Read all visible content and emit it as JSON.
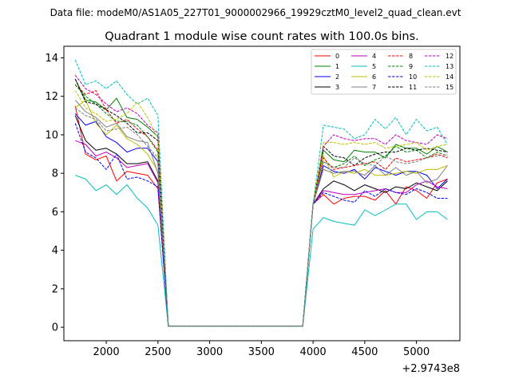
{
  "chart_data": {
    "type": "line",
    "suptitle": "Data file: modeM0/AS1A05_227T01_9000002966_19929cztM0_level2_quad_clean.evt",
    "title": "Quadrant 1 module wise count rates with 100.0s bins.",
    "xlabel": "",
    "ylabel": "",
    "x_offset_label": "+2.9743e8",
    "xlim": [
      1590,
      5420
    ],
    "ylim": [
      -0.7,
      14.6
    ],
    "xticks": [
      2000,
      2500,
      3000,
      3500,
      4000,
      4500,
      5000
    ],
    "yticks": [
      0,
      2,
      4,
      6,
      8,
      10,
      12,
      14
    ],
    "grid": false,
    "legend_position": "top-right",
    "x": [
      1700,
      1800,
      1900,
      2000,
      2100,
      2200,
      2300,
      2400,
      2500,
      2600,
      2700,
      2800,
      2900,
      3000,
      3100,
      3200,
      3300,
      3400,
      3500,
      3600,
      3700,
      3800,
      3900,
      4000,
      4100,
      4200,
      4300,
      4400,
      4500,
      4600,
      4700,
      4800,
      4900,
      5000,
      5100,
      5200,
      5300
    ],
    "series": [
      {
        "name": "0",
        "color": "#ff0000",
        "dash": "solid",
        "values": [
          11.5,
          9.0,
          8.7,
          8.9,
          7.6,
          8.1,
          8.0,
          7.9,
          7.2,
          0.05,
          0.05,
          0.05,
          0.05,
          0.05,
          0.05,
          0.05,
          0.05,
          0.05,
          0.05,
          0.05,
          0.05,
          0.05,
          0.05,
          6.4,
          6.9,
          6.4,
          6.7,
          6.8,
          6.8,
          6.6,
          7.1,
          6.4,
          7.3,
          7.1,
          6.7,
          7.5,
          7.7
        ]
      },
      {
        "name": "1",
        "color": "#008000",
        "dash": "solid",
        "values": [
          12.9,
          11.8,
          11.7,
          11.3,
          11.9,
          10.9,
          10.8,
          10.4,
          9.9,
          0.05,
          0.05,
          0.05,
          0.05,
          0.05,
          0.05,
          0.05,
          0.05,
          0.05,
          0.05,
          0.05,
          0.05,
          0.05,
          0.05,
          6.4,
          9.2,
          8.7,
          8.6,
          9.2,
          9.1,
          9.1,
          8.8,
          9.5,
          9.3,
          9.3,
          9.0,
          9.4,
          9.1
        ]
      },
      {
        "name": "2",
        "color": "#0000ff",
        "dash": "solid",
        "values": [
          11.1,
          10.5,
          10.7,
          9.9,
          9.6,
          9.1,
          9.3,
          9.3,
          8.6,
          0.05,
          0.05,
          0.05,
          0.05,
          0.05,
          0.05,
          0.05,
          0.05,
          0.05,
          0.05,
          0.05,
          0.05,
          0.05,
          0.05,
          6.4,
          8.4,
          8.1,
          8.0,
          8.2,
          7.7,
          8.3,
          8.1,
          7.9,
          8.1,
          8.1,
          7.9,
          7.2,
          7.7
        ]
      },
      {
        "name": "3",
        "color": "#000000",
        "dash": "solid",
        "values": [
          11.0,
          9.7,
          9.2,
          9.3,
          9.0,
          8.5,
          8.5,
          8.6,
          7.6,
          0.05,
          0.05,
          0.05,
          0.05,
          0.05,
          0.05,
          0.05,
          0.05,
          0.05,
          0.05,
          0.05,
          0.05,
          0.05,
          0.05,
          6.4,
          7.2,
          7.6,
          7.4,
          7.1,
          7.4,
          7.2,
          7.0,
          7.3,
          7.2,
          7.5,
          7.3,
          7.1,
          7.6
        ]
      },
      {
        "name": "4",
        "color": "#bf00bf",
        "dash": "solid",
        "values": [
          9.7,
          9.5,
          8.9,
          9.1,
          8.8,
          8.3,
          8.4,
          8.5,
          7.5,
          0.05,
          0.05,
          0.05,
          0.05,
          0.05,
          0.05,
          0.05,
          0.05,
          0.05,
          0.05,
          0.05,
          0.05,
          0.05,
          0.05,
          6.4,
          7.1,
          7.0,
          6.9,
          6.9,
          7.0,
          7.1,
          7.2,
          7.0,
          7.0,
          7.4,
          7.6,
          7.3,
          7.2
        ]
      },
      {
        "name": "5",
        "color": "#00bfbf",
        "dash": "solid",
        "values": [
          7.9,
          7.7,
          7.1,
          7.4,
          6.9,
          7.4,
          6.7,
          6.2,
          5.3,
          0.05,
          0.05,
          0.05,
          0.05,
          0.05,
          0.05,
          0.05,
          0.05,
          0.05,
          0.05,
          0.05,
          0.05,
          0.05,
          0.05,
          5.1,
          5.7,
          5.5,
          5.4,
          5.3,
          6.1,
          5.8,
          6.1,
          6.4,
          6.4,
          5.6,
          6.0,
          6.0,
          5.6
        ]
      },
      {
        "name": "6",
        "color": "#bfbf00",
        "dash": "solid",
        "values": [
          11.4,
          11.8,
          10.6,
          10.0,
          10.5,
          9.8,
          9.5,
          9.0,
          8.1,
          0.05,
          0.05,
          0.05,
          0.05,
          0.05,
          0.05,
          0.05,
          0.05,
          0.05,
          0.05,
          0.05,
          0.05,
          0.05,
          0.05,
          6.4,
          8.9,
          7.8,
          8.1,
          8.0,
          8.2,
          7.9,
          7.9,
          8.0,
          8.1,
          8.0,
          8.2,
          8.2,
          8.4
        ]
      },
      {
        "name": "7",
        "color": "#808080",
        "dash": "solid",
        "values": [
          11.8,
          11.2,
          10.9,
          10.4,
          10.6,
          9.9,
          9.7,
          9.6,
          8.0,
          0.05,
          0.05,
          0.05,
          0.05,
          0.05,
          0.05,
          0.05,
          0.05,
          0.05,
          0.05,
          0.05,
          0.05,
          0.05,
          0.05,
          6.4,
          8.2,
          8.0,
          8.1,
          8.1,
          7.9,
          8.4,
          7.9,
          8.3,
          7.9,
          8.1,
          7.5,
          7.7,
          8.4
        ]
      },
      {
        "name": "8",
        "color": "#ff0000",
        "dash": "dashed",
        "values": [
          12.6,
          12.1,
          12.3,
          11.3,
          10.6,
          10.8,
          10.3,
          9.9,
          9.2,
          0.05,
          0.05,
          0.05,
          0.05,
          0.05,
          0.05,
          0.05,
          0.05,
          0.05,
          0.05,
          0.05,
          0.05,
          0.05,
          0.05,
          6.4,
          8.8,
          8.2,
          8.3,
          8.4,
          8.5,
          8.6,
          8.2,
          8.8,
          8.6,
          8.7,
          8.8,
          9.0,
          8.8
        ]
      },
      {
        "name": "9",
        "color": "#008000",
        "dash": "dashed",
        "values": [
          12.6,
          12.0,
          11.6,
          11.1,
          10.7,
          10.7,
          10.5,
          9.9,
          9.1,
          0.05,
          0.05,
          0.05,
          0.05,
          0.05,
          0.05,
          0.05,
          0.05,
          0.05,
          0.05,
          0.05,
          0.05,
          0.05,
          0.05,
          6.4,
          8.6,
          8.3,
          8.5,
          8.9,
          8.4,
          8.7,
          8.9,
          9.4,
          9.1,
          9.2,
          8.8,
          9.1,
          8.9
        ]
      },
      {
        "name": "10",
        "color": "#0000ff",
        "dash": "dashed",
        "values": [
          10.6,
          9.1,
          8.8,
          8.2,
          9.0,
          7.7,
          7.8,
          7.6,
          7.3,
          0.05,
          0.05,
          0.05,
          0.05,
          0.05,
          0.05,
          0.05,
          0.05,
          0.05,
          0.05,
          0.05,
          0.05,
          0.05,
          0.05,
          6.4,
          7.0,
          6.8,
          6.6,
          6.5,
          7.1,
          6.8,
          7.2,
          7.0,
          6.9,
          7.2,
          7.0,
          6.7,
          6.7
        ]
      },
      {
        "name": "11",
        "color": "#000000",
        "dash": "dashed",
        "values": [
          12.9,
          11.7,
          11.6,
          11.3,
          11.0,
          10.6,
          10.1,
          10.1,
          9.7,
          0.05,
          0.05,
          0.05,
          0.05,
          0.05,
          0.05,
          0.05,
          0.05,
          0.05,
          0.05,
          0.05,
          0.05,
          0.05,
          0.05,
          6.4,
          9.4,
          8.9,
          8.8,
          8.4,
          8.8,
          9.0,
          9.1,
          9.1,
          9.3,
          9.2,
          9.3,
          9.2,
          9.1
        ]
      },
      {
        "name": "12",
        "color": "#bf00bf",
        "dash": "dashed",
        "values": [
          13.1,
          12.4,
          12.1,
          11.6,
          11.2,
          11.4,
          11.1,
          10.5,
          10.1,
          0.05,
          0.05,
          0.05,
          0.05,
          0.05,
          0.05,
          0.05,
          0.05,
          0.05,
          0.05,
          0.05,
          0.05,
          0.05,
          0.05,
          6.4,
          9.4,
          10.0,
          9.8,
          9.7,
          9.8,
          9.8,
          9.5,
          10.0,
          9.7,
          9.6,
          9.5,
          10.0,
          9.8
        ]
      },
      {
        "name": "13",
        "color": "#00bfbf",
        "dash": "dashed",
        "values": [
          13.9,
          12.6,
          12.8,
          12.4,
          12.8,
          12.1,
          11.6,
          11.9,
          11.0,
          0.05,
          0.05,
          0.05,
          0.05,
          0.05,
          0.05,
          0.05,
          0.05,
          0.05,
          0.05,
          0.05,
          0.05,
          0.05,
          0.05,
          6.4,
          10.5,
          10.4,
          10.3,
          9.8,
          10.0,
          10.8,
          10.3,
          10.9,
          10.0,
          10.8,
          10.2,
          10.4,
          9.5
        ]
      },
      {
        "name": "14",
        "color": "#bfbf00",
        "dash": "dashed",
        "values": [
          12.3,
          11.4,
          11.1,
          10.7,
          10.8,
          11.1,
          11.7,
          10.9,
          9.8,
          0.05,
          0.05,
          0.05,
          0.05,
          0.05,
          0.05,
          0.05,
          0.05,
          0.05,
          0.05,
          0.05,
          0.05,
          0.05,
          0.05,
          6.4,
          9.6,
          9.6,
          9.5,
          9.6,
          9.5,
          9.6,
          9.3,
          9.4,
          9.5,
          9.6,
          9.2,
          9.4,
          9.5
        ]
      },
      {
        "name": "15",
        "color": "#808080",
        "dash": "dashed",
        "values": [
          11.4,
          11.0,
          10.8,
          10.2,
          10.3,
          10.4,
          10.0,
          9.4,
          8.8,
          0.05,
          0.05,
          0.05,
          0.05,
          0.05,
          0.05,
          0.05,
          0.05,
          0.05,
          0.05,
          0.05,
          0.05,
          0.05,
          0.05,
          6.4,
          8.6,
          8.3,
          8.3,
          8.8,
          8.5,
          8.4,
          8.9,
          8.6,
          8.5,
          8.6,
          8.8,
          8.9,
          9.0
        ]
      }
    ]
  }
}
